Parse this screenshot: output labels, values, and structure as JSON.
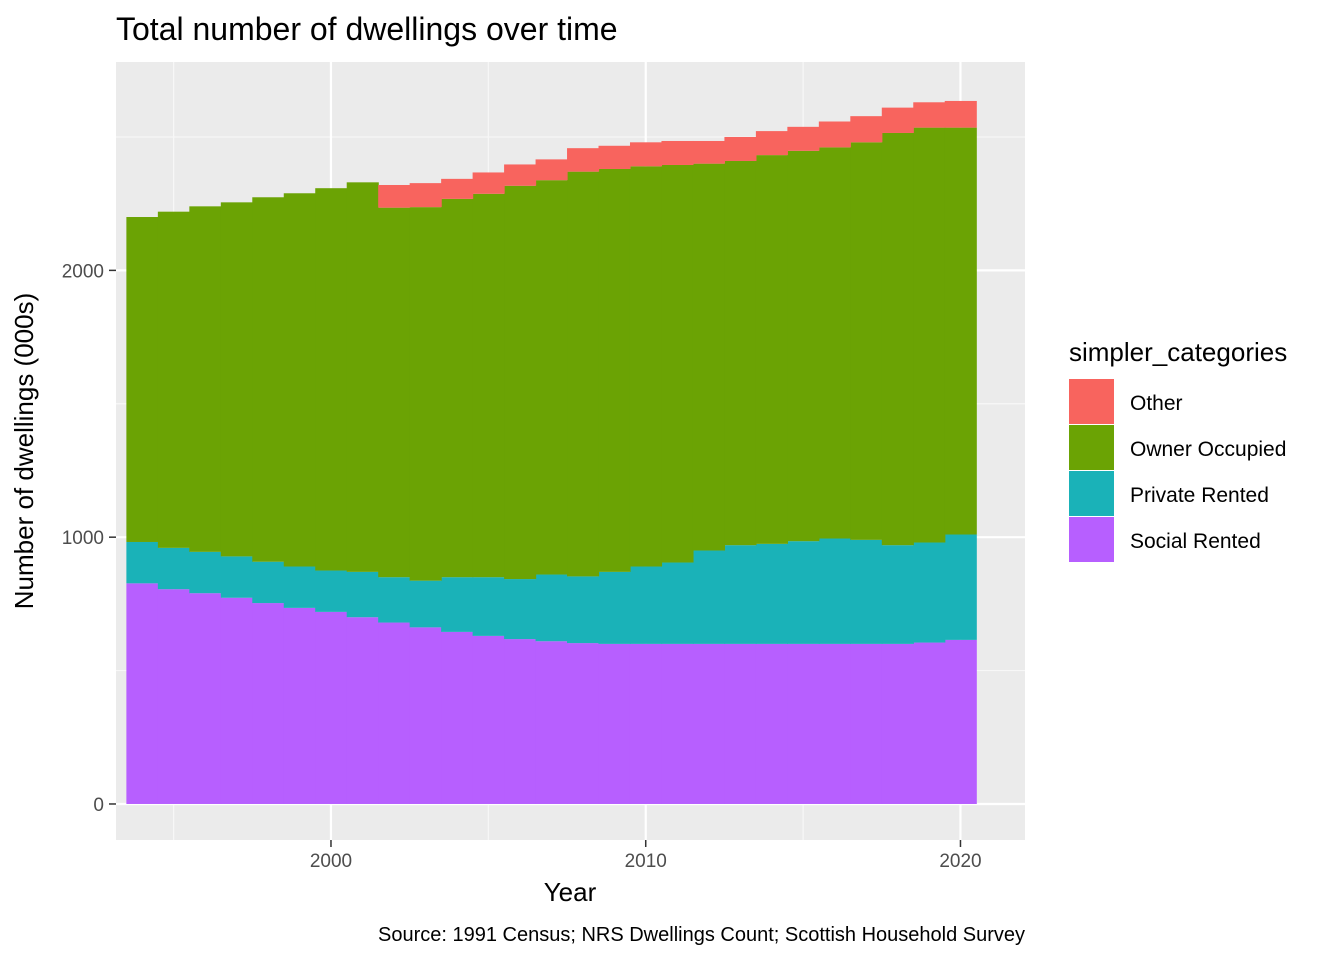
{
  "chart_data": {
    "type": "bar",
    "stacked": true,
    "title": "Total number of dwellings over time",
    "xlabel": "Year",
    "ylabel": "Number of dwellings (000s)",
    "caption": "Source: 1991 Census; NRS Dwellings Count; Scottish Household Survey",
    "legend_title": "simpler_categories",
    "legend_position": "right",
    "grid": true,
    "x": [
      1994,
      1995,
      1996,
      1997,
      1998,
      1999,
      2000,
      2001,
      2002,
      2003,
      2004,
      2005,
      2006,
      2007,
      2008,
      2009,
      2010,
      2011,
      2012,
      2013,
      2014,
      2015,
      2016,
      2017,
      2018,
      2019,
      2020
    ],
    "xlim": [
      1993.17,
      2022.05
    ],
    "ylim": [
      -135,
      2781
    ],
    "x_ticks": [
      2000,
      2010,
      2020
    ],
    "x_tick_labels": [
      "2000",
      "2010",
      "2020"
    ],
    "y_ticks": [
      0,
      1000,
      2000
    ],
    "y_tick_labels": [
      "0",
      "1000",
      "2000"
    ],
    "series": [
      {
        "name": "Social Rented",
        "color": "#B75FFF",
        "values": [
          827,
          805,
          790,
          773,
          753,
          735,
          720,
          700,
          680,
          662,
          645,
          630,
          618,
          610,
          603,
          600,
          600,
          600,
          600,
          600,
          600,
          600,
          600,
          600,
          600,
          605,
          615
        ]
      },
      {
        "name": "Private Rented",
        "color": "#1AB2B8",
        "values": [
          155,
          155,
          155,
          155,
          155,
          155,
          155,
          170,
          170,
          175,
          205,
          220,
          225,
          250,
          250,
          270,
          290,
          305,
          350,
          370,
          375,
          385,
          395,
          390,
          370,
          375,
          395
        ]
      },
      {
        "name": "Owner Occupied",
        "color": "#6BA304",
        "values": [
          1218,
          1260,
          1295,
          1327,
          1366,
          1399,
          1433,
          1460,
          1385,
          1400,
          1418,
          1437,
          1474,
          1478,
          1517,
          1510,
          1500,
          1490,
          1450,
          1440,
          1457,
          1463,
          1466,
          1490,
          1545,
          1555,
          1525
        ]
      },
      {
        "name": "Other",
        "color": "#F8645E",
        "values": [
          0,
          0,
          0,
          0,
          0,
          0,
          0,
          0,
          85,
          90,
          75,
          80,
          80,
          78,
          88,
          87,
          90,
          90,
          85,
          90,
          90,
          90,
          97,
          98,
          95,
          95,
          100
        ]
      }
    ],
    "legend_order": [
      "Other",
      "Owner Occupied",
      "Private Rented",
      "Social Rented"
    ]
  }
}
